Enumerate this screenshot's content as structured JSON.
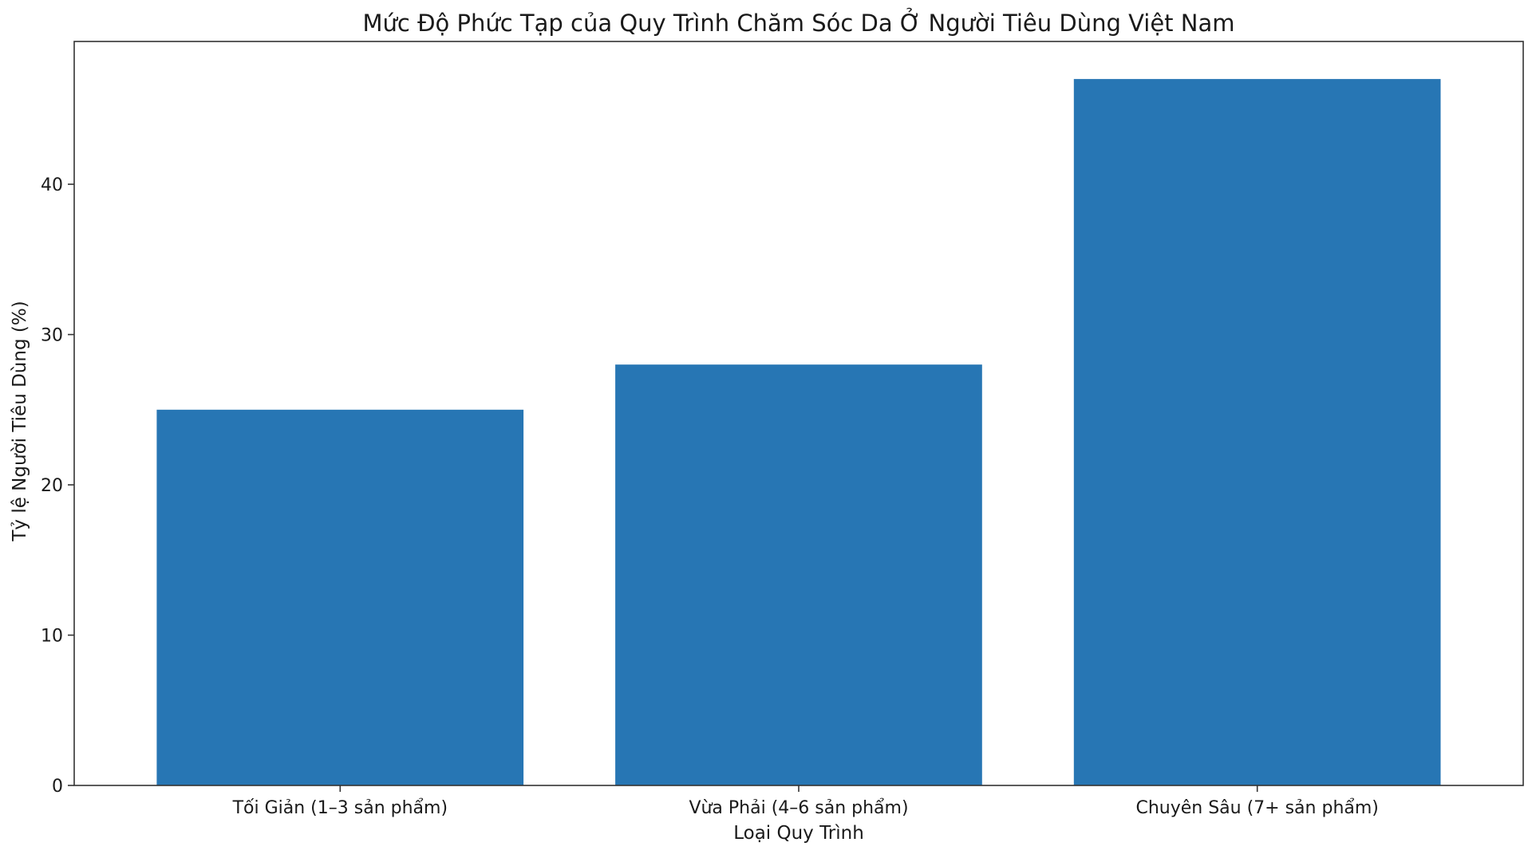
{
  "chart_data": {
    "type": "bar",
    "title": "Mức Độ Phức Tạp của Quy Trình Chăm Sóc Da Ở Người Tiêu Dùng Việt Nam",
    "xlabel": "Loại Quy Trình",
    "ylabel": "Tỷ lệ Người Tiêu Dùng (%)",
    "categories": [
      "Tối Giản (1–3 sản phẩm)",
      "Vừa Phải (4–6 sản phẩm)",
      "Chuyên Sâu (7+ sản phẩm)"
    ],
    "values": [
      25,
      28,
      47
    ],
    "ylim": [
      0,
      49.5
    ],
    "yticks": [
      0,
      10,
      20,
      30,
      40
    ],
    "ytick_labels": [
      "0",
      "10",
      "20",
      "30",
      "40"
    ],
    "grid": false,
    "legend": "none",
    "bar_color": "#2776b4",
    "axes_color": "#333333"
  }
}
